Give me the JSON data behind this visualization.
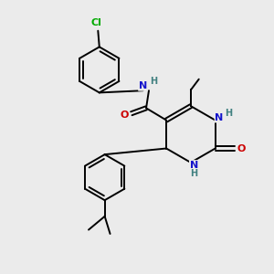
{
  "background_color": "#ebebeb",
  "atom_colors": {
    "C": "#000000",
    "N": "#1414cc",
    "O": "#cc0000",
    "Cl": "#00aa00",
    "H": "#408080"
  },
  "bond_color": "#000000",
  "figsize": [
    3.0,
    3.0
  ],
  "dpi": 100,
  "lw": 1.4,
  "fs": 8.0
}
